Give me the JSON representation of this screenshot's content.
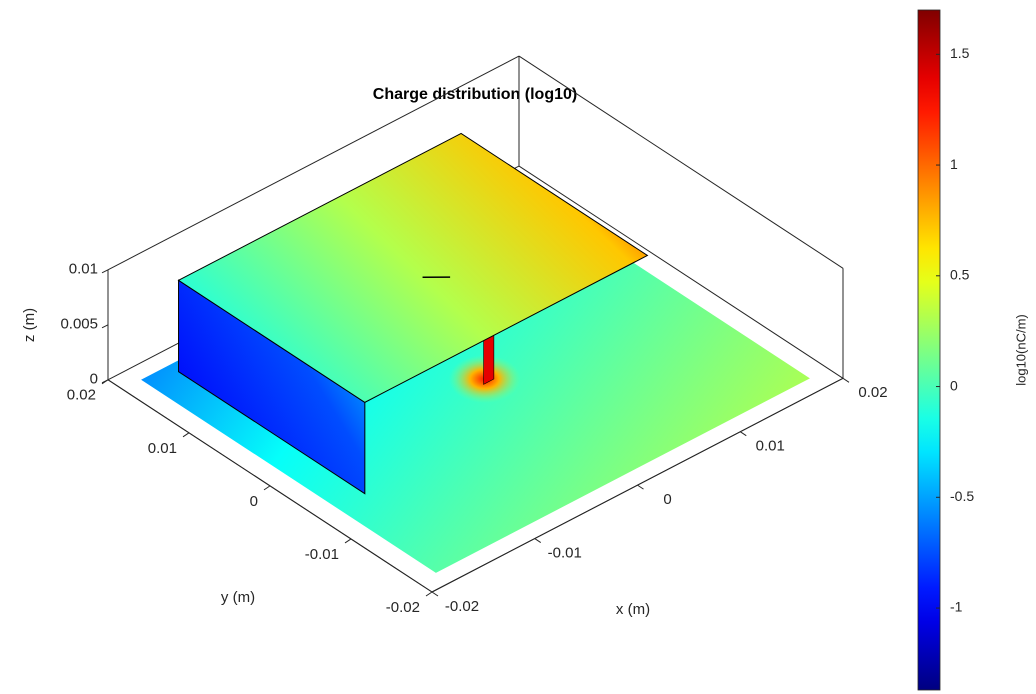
{
  "chart_data": {
    "type": "surface3d",
    "title": "Charge distribution (log10)",
    "xlabel": "x (m)",
    "ylabel": "y (m)",
    "zlabel": "z (m)",
    "xlim": [
      -0.02,
      0.02
    ],
    "ylim": [
      -0.02,
      0.02
    ],
    "zlim": [
      0,
      0.01
    ],
    "xticks": [
      -0.02,
      -0.01,
      0,
      0.01,
      0.02
    ],
    "yticks": [
      -0.02,
      -0.01,
      0,
      0.01,
      0.02
    ],
    "zticks": [
      0,
      0.005,
      0.01
    ],
    "colormap": "jet",
    "colorbar": {
      "label": "log10(nC/m)",
      "clim": [
        -1.37,
        1.7
      ],
      "ticks": [
        -1,
        -0.5,
        0,
        0.5,
        1,
        1.5
      ]
    }
  }
}
